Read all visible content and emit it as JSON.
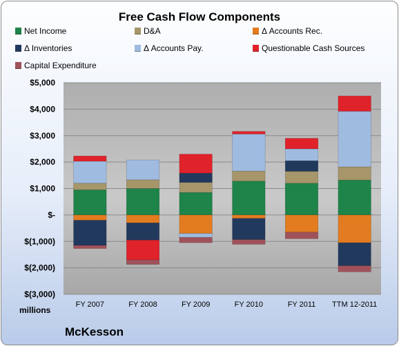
{
  "chart_data": {
    "type": "bar",
    "stacked": true,
    "title": "Free Cash Flow Components",
    "ylabel": "millions",
    "ylim": [
      -3000,
      5000
    ],
    "yticks": [
      5000,
      4000,
      3000,
      2000,
      1000,
      0,
      -1000,
      -2000,
      -3000
    ],
    "ytick_labels": [
      "$5,000",
      "$4,000",
      "$3,000",
      "$2,000",
      "$1,000",
      "$-",
      "$(1,000)",
      "$(2,000)",
      "$(3,000)"
    ],
    "categories": [
      "FY 2007",
      "FY 2008",
      "FY 2009",
      "FY 2010",
      "FY 2011",
      "TTM 12-2011"
    ],
    "grid": true,
    "legend": "top",
    "series": [
      {
        "name": "Net Income",
        "color": "#1e8449",
        "values": [
          950,
          1000,
          850,
          1280,
          1200,
          1320
        ]
      },
      {
        "name": "D&A",
        "color": "#a6966a",
        "values": [
          250,
          330,
          380,
          380,
          450,
          500
        ]
      },
      {
        "name": "Δ Accounts Rec.",
        "color": "#e37c20",
        "values": [
          -200,
          -300,
          -700,
          -130,
          -650,
          -1050
        ]
      },
      {
        "name": "Δ Inventories",
        "color": "#22395e",
        "values": [
          -950,
          -650,
          350,
          -800,
          400,
          -870
        ]
      },
      {
        "name": "Δ Accounts Pay.",
        "color": "#9fbbe0",
        "values": [
          830,
          750,
          -150,
          1400,
          450,
          2100
        ]
      },
      {
        "name": "Questionable Cash Sources",
        "color": "#e0222a",
        "values": [
          200,
          -750,
          720,
          100,
          400,
          580
        ]
      },
      {
        "name": "Capital Expenditure",
        "color": "#a0525a",
        "values": [
          -120,
          -170,
          -200,
          -180,
          -250,
          -230
        ]
      }
    ]
  },
  "footer": {
    "company": "McKesson"
  }
}
